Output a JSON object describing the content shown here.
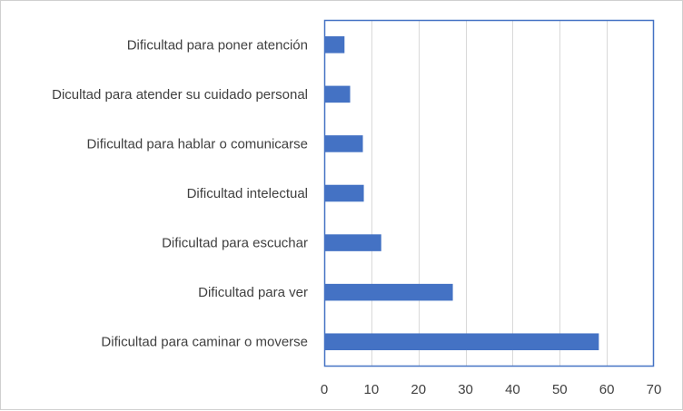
{
  "chart_data": {
    "type": "bar",
    "orientation": "horizontal",
    "categories": [
      "Dificultad para poner atención",
      "Dicultad para atender su cuidado personal",
      "Dificultad para hablar o comunicarse",
      "Dificultad intelectual",
      "Dificultad para escuchar",
      "Dificultad para ver",
      "Dificultad para caminar o moverse"
    ],
    "values": [
      4.3,
      5.5,
      8.2,
      8.4,
      12.1,
      27.3,
      58.3
    ],
    "xlim": [
      0,
      70
    ],
    "xticks": [
      0,
      10,
      20,
      30,
      40,
      50,
      60,
      70
    ],
    "title": "",
    "xlabel": "",
    "ylabel": "",
    "grid": "vertical",
    "legend": "none",
    "bar_color": "#4472c4",
    "plot_border_color": "#4472c4",
    "grid_color": "#d9d9d9"
  }
}
